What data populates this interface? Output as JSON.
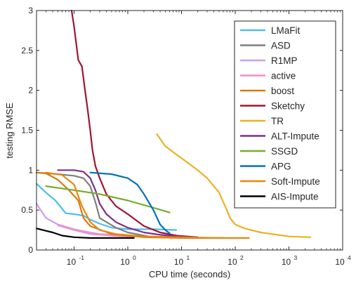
{
  "chart_data": {
    "type": "line",
    "xlabel": "CPU time (seconds)",
    "ylabel": "testing RMSE",
    "xscale": "log",
    "xlim": [
      0.02,
      10000
    ],
    "ylim": [
      0,
      3
    ],
    "xticks": [
      {
        "value": 0.1,
        "base": "10",
        "exp": "-1"
      },
      {
        "value": 1,
        "base": "10",
        "exp": "0"
      },
      {
        "value": 10,
        "base": "10",
        "exp": "1"
      },
      {
        "value": 100,
        "base": "10",
        "exp": "2"
      },
      {
        "value": 1000,
        "base": "10",
        "exp": "3"
      },
      {
        "value": 10000,
        "base": "10",
        "exp": "4"
      }
    ],
    "yticks": [
      {
        "value": 0,
        "label": "0"
      },
      {
        "value": 0.5,
        "label": "0.5"
      },
      {
        "value": 1,
        "label": "1"
      },
      {
        "value": 1.5,
        "label": "1.5"
      },
      {
        "value": 2,
        "label": "2"
      },
      {
        "value": 2.5,
        "label": "2.5"
      },
      {
        "value": 3,
        "label": "3"
      }
    ],
    "grid": false,
    "legend_position": "top-right",
    "series": [
      {
        "name": "LMaFit",
        "color": "#4DBEEE",
        "points": [
          [
            0.02,
            0.83
          ],
          [
            0.03,
            0.72
          ],
          [
            0.045,
            0.62
          ],
          [
            0.07,
            0.46
          ],
          [
            0.1,
            0.45
          ],
          [
            0.15,
            0.43
          ],
          [
            0.2,
            0.38
          ],
          [
            0.3,
            0.33
          ],
          [
            0.5,
            0.28
          ],
          [
            1,
            0.26
          ],
          [
            3,
            0.26
          ],
          [
            8,
            0.25
          ]
        ]
      },
      {
        "name": "ASD",
        "color": "#7F7F7F",
        "points": [
          [
            0.02,
            0.97
          ],
          [
            0.05,
            0.95
          ],
          [
            0.1,
            0.93
          ],
          [
            0.15,
            0.9
          ],
          [
            0.2,
            0.8
          ],
          [
            0.25,
            0.6
          ],
          [
            0.3,
            0.4
          ],
          [
            0.4,
            0.35
          ],
          [
            0.6,
            0.28
          ],
          [
            1,
            0.22
          ],
          [
            2,
            0.18
          ],
          [
            3,
            0.16
          ]
        ]
      },
      {
        "name": "R1MP",
        "color": "#C9A0F0",
        "points": [
          [
            0.02,
            0.58
          ],
          [
            0.03,
            0.4
          ],
          [
            0.05,
            0.32
          ],
          [
            0.1,
            0.26
          ],
          [
            0.2,
            0.22
          ],
          [
            0.3,
            0.2
          ],
          [
            0.6,
            0.19
          ],
          [
            1,
            0.18
          ]
        ]
      },
      {
        "name": "active",
        "color": "#F08CC8",
        "points": [
          [
            0.05,
            0.31
          ],
          [
            0.1,
            0.25
          ],
          [
            0.2,
            0.2
          ],
          [
            0.5,
            0.18
          ],
          [
            1,
            0.17
          ],
          [
            3,
            0.17
          ]
        ]
      },
      {
        "name": "boost",
        "color": "#D97A0F",
        "points": [
          [
            0.02,
            0.97
          ],
          [
            0.03,
            0.96
          ],
          [
            0.05,
            0.88
          ],
          [
            0.08,
            0.75
          ],
          [
            0.12,
            0.62
          ],
          [
            0.15,
            0.4
          ],
          [
            0.2,
            0.3
          ],
          [
            0.5,
            0.2
          ],
          [
            2,
            0.16
          ],
          [
            10,
            0.15
          ],
          [
            60,
            0.15
          ]
        ]
      },
      {
        "name": "Sketchy",
        "color": "#A2142F",
        "points": [
          [
            0.09,
            3.0
          ],
          [
            0.1,
            2.8
          ],
          [
            0.12,
            2.38
          ],
          [
            0.14,
            2.3
          ],
          [
            0.16,
            2.0
          ],
          [
            0.18,
            1.75
          ],
          [
            0.2,
            1.5
          ],
          [
            0.22,
            1.25
          ],
          [
            0.25,
            1.05
          ],
          [
            0.3,
            0.9
          ],
          [
            0.4,
            0.7
          ],
          [
            0.6,
            0.55
          ],
          [
            1,
            0.45
          ],
          [
            2,
            0.3
          ],
          [
            4,
            0.22
          ],
          [
            8,
            0.18
          ],
          [
            20,
            0.16
          ]
        ]
      },
      {
        "name": "TR",
        "color": "#EDB120",
        "points": [
          [
            3.5,
            1.45
          ],
          [
            5,
            1.3
          ],
          [
            10,
            1.15
          ],
          [
            20,
            1.0
          ],
          [
            30,
            0.9
          ],
          [
            40,
            0.8
          ],
          [
            50,
            0.72
          ],
          [
            60,
            0.6
          ],
          [
            70,
            0.5
          ],
          [
            80,
            0.4
          ],
          [
            100,
            0.32
          ],
          [
            150,
            0.27
          ],
          [
            300,
            0.22
          ],
          [
            1000,
            0.17
          ],
          [
            2500,
            0.16
          ]
        ]
      },
      {
        "name": "ALT-Impute",
        "color": "#7E2F8E",
        "points": [
          [
            0.05,
            1.0
          ],
          [
            0.1,
            1.0
          ],
          [
            0.15,
            0.98
          ],
          [
            0.2,
            0.9
          ],
          [
            0.25,
            0.75
          ],
          [
            0.3,
            0.58
          ],
          [
            0.4,
            0.45
          ],
          [
            0.6,
            0.35
          ],
          [
            1,
            0.28
          ],
          [
            2,
            0.22
          ],
          [
            4,
            0.19
          ],
          [
            8,
            0.17
          ],
          [
            20,
            0.16
          ]
        ]
      },
      {
        "name": "SSGD",
        "color": "#77AC30",
        "points": [
          [
            0.03,
            0.8
          ],
          [
            0.1,
            0.75
          ],
          [
            0.3,
            0.7
          ],
          [
            1,
            0.62
          ],
          [
            3,
            0.53
          ],
          [
            6,
            0.47
          ]
        ]
      },
      {
        "name": "APG",
        "color": "#0072BD",
        "points": [
          [
            0.2,
            0.97
          ],
          [
            0.5,
            0.95
          ],
          [
            1,
            0.9
          ],
          [
            1.5,
            0.82
          ],
          [
            2,
            0.7
          ],
          [
            3,
            0.5
          ],
          [
            4,
            0.32
          ],
          [
            5,
            0.25
          ],
          [
            6,
            0.21
          ]
        ]
      },
      {
        "name": "Soft-Impute",
        "color": "#E8870E",
        "points": [
          [
            0.03,
            0.97
          ],
          [
            0.06,
            0.94
          ],
          [
            0.1,
            0.82
          ],
          [
            0.14,
            0.55
          ],
          [
            0.2,
            0.35
          ],
          [
            0.3,
            0.25
          ],
          [
            0.6,
            0.2
          ],
          [
            2,
            0.17
          ],
          [
            10,
            0.16
          ],
          [
            50,
            0.15
          ],
          [
            180,
            0.15
          ]
        ]
      },
      {
        "name": "AIS-Impute",
        "color": "#000000",
        "points": [
          [
            0.02,
            0.27
          ],
          [
            0.03,
            0.24
          ],
          [
            0.04,
            0.22
          ],
          [
            0.06,
            0.18
          ],
          [
            0.1,
            0.16
          ],
          [
            0.2,
            0.15
          ],
          [
            0.5,
            0.15
          ],
          [
            1.3,
            0.15
          ]
        ]
      }
    ]
  }
}
